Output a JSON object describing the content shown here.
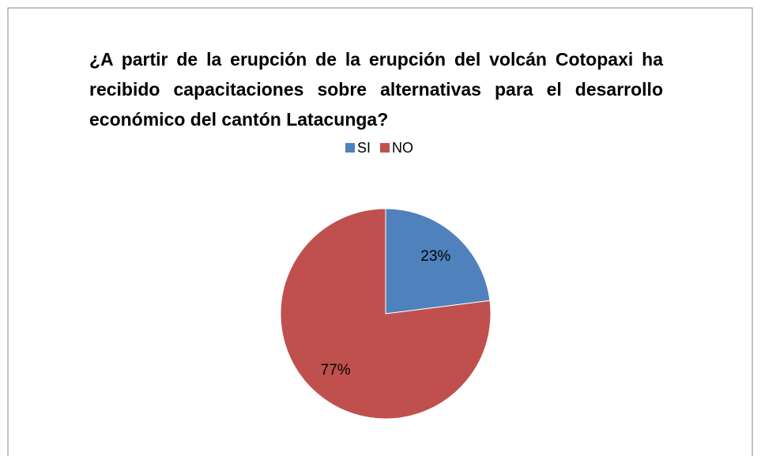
{
  "chart_data": {
    "type": "pie",
    "title": "¿A partir de la erupción de la erupción del volcán Cotopaxi ha recibido capacitaciones sobre alternativas para el desarrollo económico del cantón Latacunga?",
    "categories": [
      "SI",
      "NO"
    ],
    "values": [
      23,
      77
    ],
    "value_labels": [
      "23%",
      "77%"
    ],
    "colors": [
      "#4f81bd",
      "#c0504d"
    ],
    "legend": "top"
  }
}
